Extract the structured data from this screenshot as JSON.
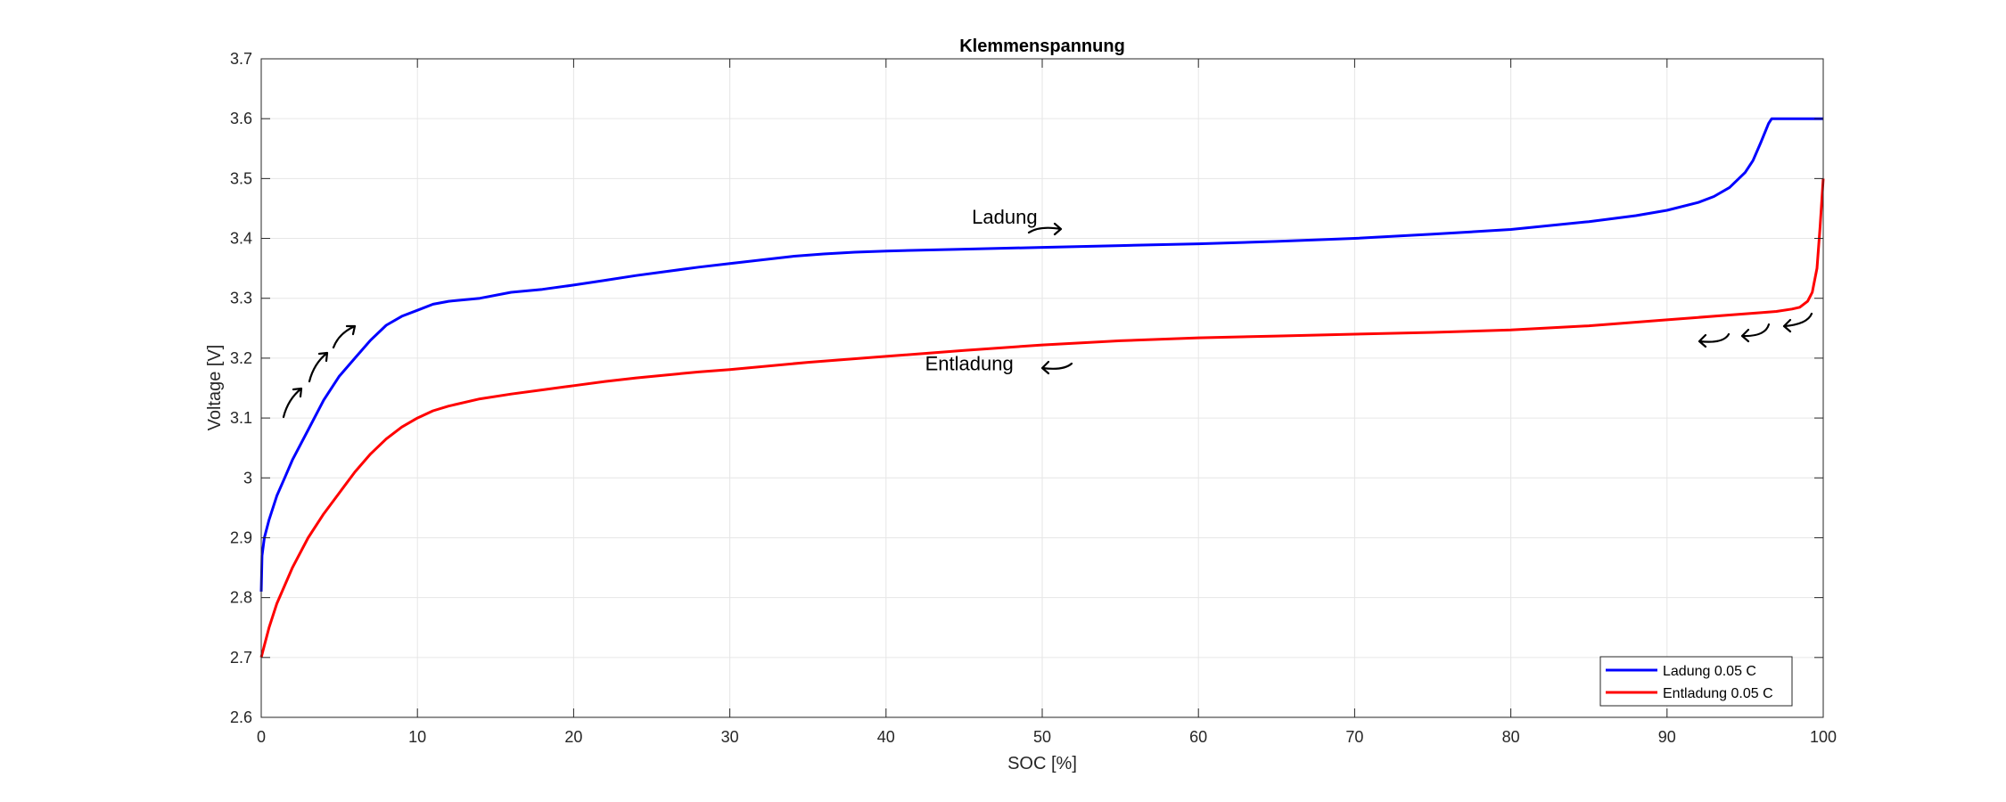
{
  "chart_data": {
    "type": "line",
    "title": "Klemmenspannung",
    "xlabel": "SOC [%]",
    "ylabel": "Voltage [V]",
    "xlim": [
      0,
      100
    ],
    "ylim": [
      2.6,
      3.7
    ],
    "xticks": [
      0,
      10,
      20,
      30,
      40,
      50,
      60,
      70,
      80,
      90,
      100
    ],
    "xtick_labels": [
      "0",
      "10",
      "20",
      "30",
      "40",
      "50",
      "60",
      "70",
      "80",
      "90",
      "100"
    ],
    "yticks": [
      2.6,
      2.7,
      2.8,
      2.9,
      3.0,
      3.1,
      3.2,
      3.3,
      3.4,
      3.5,
      3.6,
      3.7
    ],
    "ytick_labels": [
      "2.6",
      "2.7",
      "2.8",
      "2.9",
      "3",
      "3.1",
      "3.2",
      "3.3",
      "3.4",
      "3.5",
      "3.6",
      "3.7"
    ],
    "grid": true,
    "legend_position": "bottom-right",
    "series": [
      {
        "name": "Ladung 0.05 C",
        "color": "#0000ff",
        "x": [
          0,
          0.05,
          0.2,
          0.5,
          1,
          1.5,
          2,
          3,
          4,
          5,
          6,
          7,
          8,
          9,
          10,
          11,
          12,
          14,
          16,
          18,
          20,
          22,
          24,
          26,
          28,
          30,
          32,
          34,
          36,
          38,
          40,
          45,
          50,
          55,
          60,
          65,
          70,
          75,
          80,
          85,
          88,
          90,
          92,
          93,
          94,
          95,
          95.5,
          96,
          96.5,
          96.7,
          98,
          100
        ],
        "y": [
          2.81,
          2.87,
          2.9,
          2.93,
          2.97,
          3.0,
          3.03,
          3.08,
          3.13,
          3.17,
          3.2,
          3.23,
          3.255,
          3.27,
          3.28,
          3.29,
          3.295,
          3.3,
          3.31,
          3.315,
          3.322,
          3.33,
          3.338,
          3.345,
          3.352,
          3.358,
          3.364,
          3.37,
          3.374,
          3.377,
          3.379,
          3.382,
          3.385,
          3.388,
          3.391,
          3.395,
          3.4,
          3.407,
          3.415,
          3.428,
          3.438,
          3.447,
          3.46,
          3.47,
          3.485,
          3.51,
          3.53,
          3.56,
          3.592,
          3.6,
          3.6,
          3.6
        ]
      },
      {
        "name": "Entladung 0.05 C",
        "color": "#ff0000",
        "x": [
          0,
          0.2,
          0.5,
          1,
          2,
          3,
          4,
          5,
          6,
          7,
          8,
          9,
          10,
          11,
          12,
          14,
          16,
          18,
          20,
          22,
          24,
          26,
          28,
          30,
          35,
          40,
          45,
          50,
          55,
          60,
          65,
          70,
          75,
          80,
          85,
          90,
          92,
          94,
          96,
          97,
          98,
          98.5,
          99,
          99.3,
          99.6,
          99.8,
          100
        ],
        "y": [
          2.7,
          2.72,
          2.75,
          2.79,
          2.85,
          2.9,
          2.94,
          2.975,
          3.01,
          3.04,
          3.065,
          3.085,
          3.1,
          3.112,
          3.12,
          3.132,
          3.14,
          3.147,
          3.154,
          3.161,
          3.167,
          3.172,
          3.177,
          3.181,
          3.193,
          3.203,
          3.213,
          3.222,
          3.229,
          3.234,
          3.237,
          3.24,
          3.243,
          3.247,
          3.254,
          3.264,
          3.268,
          3.272,
          3.276,
          3.278,
          3.282,
          3.285,
          3.295,
          3.31,
          3.35,
          3.42,
          3.5
        ]
      }
    ],
    "annotations": [
      {
        "text": "Ladung",
        "x": 45.5,
        "y": 3.425
      },
      {
        "text": "Entladung",
        "x": 42.5,
        "y": 3.18
      }
    ]
  }
}
